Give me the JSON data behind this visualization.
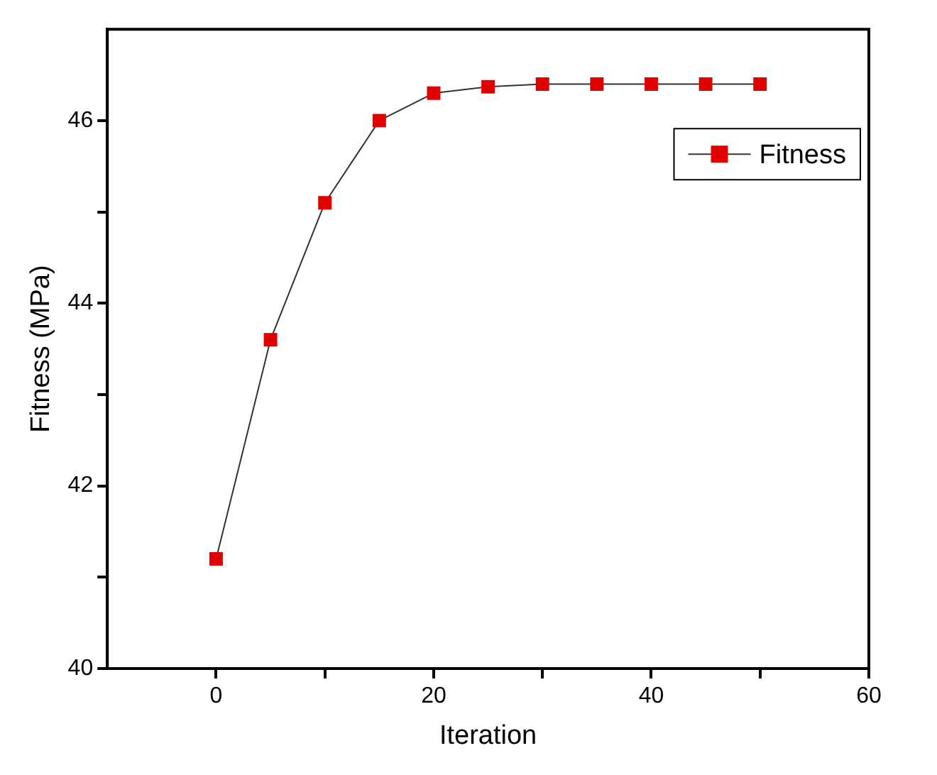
{
  "chart_data": {
    "type": "line",
    "xlabel": "Iteration",
    "ylabel": "Fitness (MPa)",
    "x": [
      0,
      5,
      10,
      15,
      20,
      25,
      30,
      35,
      40,
      45,
      50
    ],
    "series": [
      {
        "name": "Fitness",
        "color": "#e00000",
        "values": [
          41.2,
          43.6,
          45.1,
          46.0,
          46.3,
          46.37,
          46.4,
          46.4,
          46.4,
          46.4,
          46.4
        ]
      }
    ],
    "xlim": [
      -10,
      60
    ],
    "xticks": [
      0,
      {
        "value": 10,
        "label": null
      },
      20,
      {
        "value": 30,
        "label": null
      },
      40,
      {
        "value": 50,
        "label": null
      },
      60
    ],
    "ylim": [
      40,
      47
    ],
    "yticks": [
      40,
      {
        "value": 41,
        "label": null
      },
      42,
      {
        "value": 43,
        "label": null
      },
      44,
      {
        "value": 45,
        "label": null
      },
      46
    ],
    "grid": false,
    "legend": "top right",
    "marker": "square",
    "line_style": "solid"
  }
}
